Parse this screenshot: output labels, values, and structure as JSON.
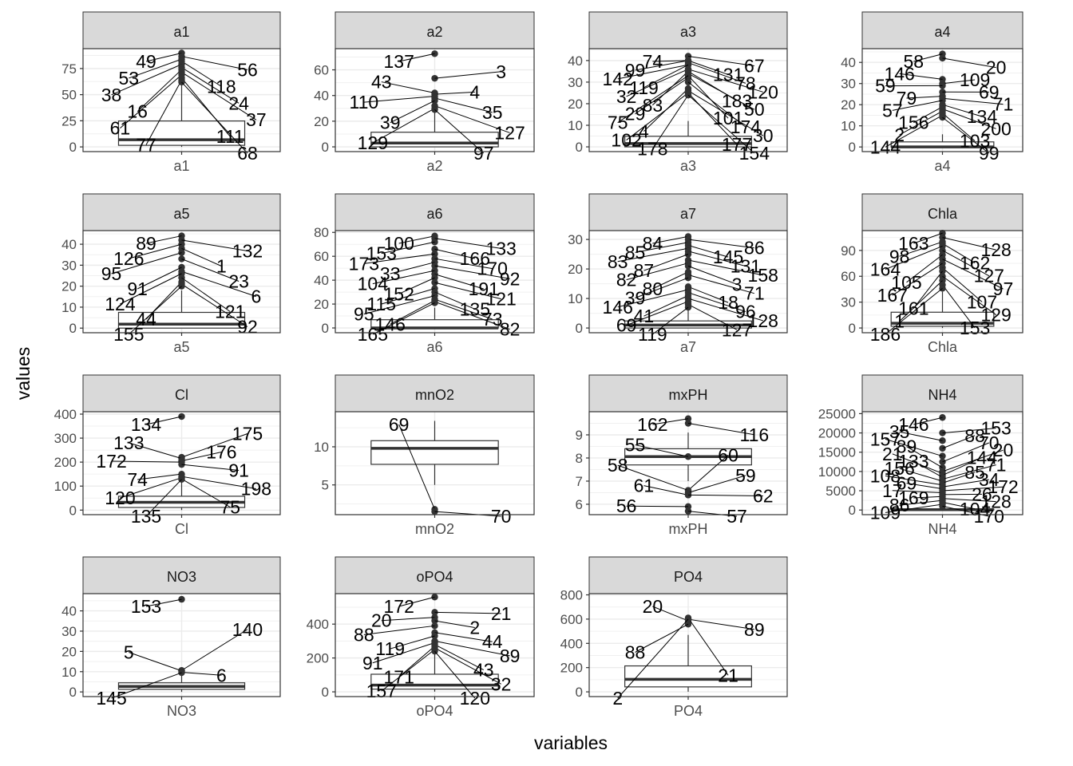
{
  "chart_data": {
    "type": "boxplot",
    "xlabel": "variables",
    "ylabel": "values",
    "grid": true,
    "facet_scales": "free",
    "panels": [
      {
        "name": "a1",
        "ticks": [
          0,
          25,
          50,
          75
        ],
        "ylim": [
          -4.5,
          94
        ],
        "box": {
          "q1": 1.5,
          "median": 6.9,
          "q3": 24.8,
          "whisker_low": 0,
          "whisker_high": 62
        },
        "outliers": [
          {
            "id": "49",
            "y": 89.8
          },
          {
            "id": "56",
            "y": 86.6
          },
          {
            "id": "53",
            "y": 84
          },
          {
            "id": "118",
            "y": 81.9
          },
          {
            "id": "38",
            "y": 79
          },
          {
            "id": "24",
            "y": 76
          },
          {
            "id": "16",
            "y": 74
          },
          {
            "id": "37",
            "y": 71.5
          },
          {
            "id": "61",
            "y": 69
          },
          {
            "id": "111",
            "y": 66
          },
          {
            "id": "77",
            "y": 64
          },
          {
            "id": "68",
            "y": 62
          }
        ]
      },
      {
        "name": "a2",
        "ticks": [
          0,
          20,
          40,
          60
        ],
        "ylim": [
          -3.7,
          76.5
        ],
        "box": {
          "q1": 0,
          "median": 3,
          "q3": 11.4,
          "whisker_low": 0,
          "whisker_high": 28
        },
        "outliers": [
          {
            "id": "137",
            "y": 72.6
          },
          {
            "id": "3",
            "y": 53.4
          },
          {
            "id": "43",
            "y": 42
          },
          {
            "id": "4",
            "y": 41
          },
          {
            "id": "110",
            "y": 39.4
          },
          {
            "id": "35",
            "y": 38
          },
          {
            "id": "39",
            "y": 36
          },
          {
            "id": "127",
            "y": 32
          },
          {
            "id": "129",
            "y": 30
          },
          {
            "id": "97",
            "y": 29
          }
        ]
      },
      {
        "name": "a3",
        "ticks": [
          0,
          10,
          20,
          30,
          40
        ],
        "ylim": [
          -2.2,
          45.5
        ],
        "box": {
          "q1": 0,
          "median": 1.55,
          "q3": 4.9,
          "whisker_low": 0,
          "whisker_high": 12
        }
      },
      {
        "name": "a4",
        "ticks": [
          0,
          10,
          20,
          30,
          40
        ],
        "ylim": [
          -2.2,
          46.5
        ],
        "box": {
          "q1": 0,
          "median": 0,
          "q3": 2.4,
          "whisker_low": 0,
          "whisker_high": 6
        }
      },
      {
        "name": "a5",
        "ticks": [
          0,
          10,
          20,
          30,
          40
        ],
        "ylim": [
          -2.2,
          46.5
        ],
        "box": {
          "q1": 0,
          "median": 1.9,
          "q3": 7.5,
          "whisker_low": 0,
          "whisker_high": 18
        }
      },
      {
        "name": "a6",
        "ticks": [
          0,
          20,
          40,
          60,
          80
        ],
        "ylim": [
          -4,
          81.5
        ],
        "box": {
          "q1": 0,
          "median": 0,
          "q3": 6.9,
          "whisker_low": 0,
          "whisker_high": 17
        }
      },
      {
        "name": "a7",
        "ticks": [
          0,
          10,
          20,
          30
        ],
        "ylim": [
          -1.6,
          33
        ],
        "box": {
          "q1": 0,
          "median": 1,
          "q3": 2.4,
          "whisker_low": 0,
          "whisker_high": 6
        }
      },
      {
        "name": "Chla",
        "ticks": [
          0,
          30,
          60,
          90
        ],
        "ylim": [
          -5.5,
          113
        ],
        "box": {
          "q1": 2,
          "median": 5.5,
          "q3": 18.3,
          "whisker_low": 0,
          "whisker_high": 42
        }
      },
      {
        "name": "Cl",
        "ticks": [
          0,
          100,
          200,
          300,
          400
        ],
        "ylim": [
          -19,
          410
        ],
        "box": {
          "q1": 11,
          "median": 32.7,
          "q3": 57.8,
          "whisker_low": 0,
          "whisker_high": 125
        }
      },
      {
        "name": "mnO2",
        "ticks": [
          5,
          10
        ],
        "ylim": [
          1.1,
          14.6
        ],
        "box": {
          "q1": 7.7,
          "median": 9.8,
          "q3": 10.8,
          "whisker_low": 5,
          "whisker_high": 13.4
        },
        "outliers": [
          {
            "id": "69",
            "y": 1.8
          },
          {
            "id": "70",
            "y": 1.5
          }
        ]
      },
      {
        "name": "mxPH",
        "ticks": [
          6,
          7,
          8,
          9
        ],
        "ylim": [
          5.55,
          10.0
        ],
        "box": {
          "q1": 7.7,
          "median": 8.06,
          "q3": 8.4,
          "whisker_low": 7.0,
          "whisker_high": 9.1
        },
        "outliers": [
          {
            "id": "162",
            "y": 9.7
          },
          {
            "id": "116",
            "y": 9.5
          },
          {
            "id": "55",
            "y": 8.06
          },
          {
            "id": "60",
            "y": 6.6
          },
          {
            "id": "58",
            "y": 6.6
          },
          {
            "id": "59",
            "y": 6.5
          },
          {
            "id": "61",
            "y": 6.4
          },
          {
            "id": "62",
            "y": 6.4
          },
          {
            "id": "56",
            "y": 5.9
          },
          {
            "id": "57",
            "y": 5.7
          }
        ]
      },
      {
        "name": "NH4",
        "ticks": [
          0,
          5000,
          10000,
          15000,
          20000,
          25000
        ],
        "ylim": [
          -1200,
          25500
        ],
        "box": {
          "q1": 38,
          "median": 103,
          "q3": 226,
          "whisker_low": 5,
          "whisker_high": 500
        }
      },
      {
        "name": "NO3",
        "ticks": [
          0,
          10,
          20,
          30,
          40
        ],
        "ylim": [
          -2.3,
          48.5
        ],
        "box": {
          "q1": 1.3,
          "median": 2.7,
          "q3": 4.5,
          "whisker_low": 0,
          "whisker_high": 9
        },
        "outliers": [
          {
            "id": "153",
            "y": 45.7
          },
          {
            "id": "140",
            "y": 10.6
          },
          {
            "id": "5",
            "y": 10.4
          },
          {
            "id": "6",
            "y": 9.7
          },
          {
            "id": "145",
            "y": 9.5
          }
        ]
      },
      {
        "name": "oPO4",
        "ticks": [
          0,
          200,
          400
        ],
        "ylim": [
          -28,
          580
        ],
        "box": {
          "q1": 16,
          "median": 40,
          "q3": 104,
          "whisker_low": 1,
          "whisker_high": 230
        }
      },
      {
        "name": "PO4",
        "ticks": [
          0,
          200,
          400,
          600,
          800
        ],
        "ylim": [
          -39,
          810
        ],
        "box": {
          "q1": 41,
          "median": 103,
          "q3": 214,
          "whisker_low": 1,
          "whisker_high": 470
        },
        "outliers": [
          {
            "id": "20",
            "y": 586
          },
          {
            "id": "89",
            "y": 599
          },
          {
            "id": "88",
            "y": 558
          },
          {
            "id": "21",
            "y": 610
          },
          {
            "id": "2",
            "y": 600
          }
        ]
      }
    ],
    "outlier_label_layouts": {
      "a3": [
        [
          "74",
          74,
          40
        ],
        [
          "67",
          67,
          42
        ],
        [
          "99",
          99,
          40
        ],
        [
          "131",
          131,
          40
        ],
        [
          "142",
          142,
          38
        ],
        [
          "78",
          78,
          39
        ],
        [
          "119",
          119,
          38
        ],
        [
          "120",
          120,
          36
        ],
        [
          "32",
          32,
          36
        ],
        [
          "183",
          183,
          35
        ],
        [
          "83",
          83,
          35
        ],
        [
          "50",
          50,
          34
        ],
        [
          "29",
          29,
          32
        ],
        [
          "101",
          101,
          33
        ],
        [
          "75",
          75,
          33
        ],
        [
          "174",
          174,
          30
        ],
        [
          "4",
          4,
          27
        ],
        [
          "30",
          30,
          26
        ],
        [
          "102",
          102,
          25
        ],
        [
          "177",
          177,
          25
        ],
        [
          "178",
          178,
          24
        ],
        [
          "154",
          154,
          24
        ]
      ],
      "a4": [
        [
          "58",
          58,
          44
        ],
        [
          "20",
          20,
          42
        ],
        [
          "146",
          146,
          32
        ],
        [
          "109",
          109,
          30
        ],
        [
          "59",
          59,
          29
        ],
        [
          "69",
          69,
          26
        ],
        [
          "79",
          79,
          24
        ],
        [
          "71",
          71,
          23
        ],
        [
          "57",
          57,
          22
        ],
        [
          "134",
          134,
          20
        ],
        [
          "156",
          156,
          19
        ],
        [
          "200",
          200,
          18
        ],
        [
          "2",
          2,
          17
        ],
        [
          "103",
          103,
          16
        ],
        [
          "144",
          144,
          15
        ],
        [
          "99",
          99,
          14
        ]
      ],
      "a5": [
        [
          "89",
          89,
          44
        ],
        [
          "132",
          132,
          42
        ],
        [
          "126",
          126,
          40
        ],
        [
          "1",
          1,
          38
        ],
        [
          "95",
          95,
          36
        ],
        [
          "23",
          23,
          33
        ],
        [
          "91",
          91,
          29
        ],
        [
          "6",
          6,
          27
        ],
        [
          "124",
          124,
          26
        ],
        [
          "121",
          121,
          24
        ],
        [
          "44",
          44,
          22
        ],
        [
          "92",
          92,
          21
        ],
        [
          "155",
          155,
          20
        ]
      ],
      "a6": [
        [
          "100",
          100,
          77
        ],
        [
          "133",
          133,
          75
        ],
        [
          "153",
          153,
          72
        ],
        [
          "166",
          166,
          66
        ],
        [
          "173",
          173,
          62
        ],
        [
          "170",
          170,
          58
        ],
        [
          "33",
          33,
          55
        ],
        [
          "92",
          92,
          52
        ],
        [
          "104",
          104,
          48
        ],
        [
          "191",
          191,
          45
        ],
        [
          "152",
          152,
          42
        ],
        [
          "121",
          121,
          38
        ],
        [
          "115",
          115,
          33
        ],
        [
          "135",
          135,
          30
        ],
        [
          "95",
          95,
          27
        ],
        [
          "73",
          73,
          24
        ],
        [
          "146",
          146,
          23
        ],
        [
          "82",
          82,
          22
        ],
        [
          "165",
          165,
          21
        ]
      ],
      "a7": [
        [
          "84",
          84,
          31
        ],
        [
          "86",
          86,
          30
        ],
        [
          "85",
          85,
          29
        ],
        [
          "145",
          145,
          28
        ],
        [
          "83",
          83,
          27
        ],
        [
          "131",
          131,
          26
        ],
        [
          "87",
          87,
          25
        ],
        [
          "158",
          158,
          23
        ],
        [
          "82",
          82,
          22
        ],
        [
          "3",
          3,
          21
        ],
        [
          "80",
          80,
          19
        ],
        [
          "71",
          71,
          18
        ],
        [
          "39",
          39,
          17
        ],
        [
          "18",
          18,
          14
        ],
        [
          "146",
          146,
          13
        ],
        [
          "96",
          96,
          12
        ],
        [
          "41",
          41,
          11
        ],
        [
          "128",
          128,
          10
        ],
        [
          "69",
          69,
          9
        ],
        [
          "127",
          127,
          8
        ],
        [
          "119",
          119,
          7
        ]
      ],
      "Chla": [
        [
          "163",
          163,
          110
        ],
        [
          "128",
          128,
          105
        ],
        [
          "98",
          98,
          100
        ],
        [
          "162",
          162,
          98
        ],
        [
          "164",
          164,
          95
        ],
        [
          "127",
          127,
          90
        ],
        [
          "105",
          105,
          85
        ],
        [
          "97",
          97,
          80
        ],
        [
          "167",
          167,
          75
        ],
        [
          "107",
          107,
          70
        ],
        [
          "161",
          161,
          66
        ],
        [
          "129",
          129,
          60
        ],
        [
          "1",
          1,
          55
        ],
        [
          "153",
          153,
          50
        ],
        [
          "186",
          186,
          46
        ]
      ],
      "Cl": [
        [
          "134",
          134,
          390
        ],
        [
          "175",
          175,
          220
        ],
        [
          "133",
          133,
          215
        ],
        [
          "176",
          176,
          205
        ],
        [
          "172",
          172,
          200
        ],
        [
          "91",
          91,
          190
        ],
        [
          "74",
          74,
          150
        ],
        [
          "198",
          198,
          140
        ],
        [
          "120",
          120,
          135
        ],
        [
          "75",
          75,
          130
        ],
        [
          "135",
          135,
          128
        ]
      ],
      "NH4": [
        [
          "146",
          146,
          24000
        ],
        [
          "153",
          153,
          20000
        ],
        [
          "35",
          35,
          18000
        ],
        [
          "88",
          88,
          16000
        ],
        [
          "157",
          157,
          14000
        ],
        [
          "70",
          70,
          12500
        ],
        [
          "89",
          89,
          11000
        ],
        [
          "20",
          20,
          10000
        ],
        [
          "21",
          21,
          9500
        ],
        [
          "144",
          144,
          9000
        ],
        [
          "133",
          133,
          8500
        ],
        [
          "71",
          71,
          8000
        ],
        [
          "156",
          156,
          7500
        ],
        [
          "85",
          85,
          7000
        ],
        [
          "108",
          108,
          6500
        ],
        [
          "34",
          34,
          6000
        ],
        [
          "69",
          69,
          5500
        ],
        [
          "172",
          172,
          5000
        ],
        [
          "17",
          17,
          4500
        ],
        [
          "26",
          26,
          4000
        ],
        [
          "169",
          169,
          3500
        ],
        [
          "128",
          128,
          3000
        ],
        [
          "86",
          86,
          2500
        ],
        [
          "104",
          104,
          2000
        ],
        [
          "109",
          109,
          1500
        ],
        [
          "170",
          170,
          1000
        ]
      ],
      "oPO4": [
        [
          "172",
          172,
          560
        ],
        [
          "21",
          21,
          470
        ],
        [
          "20",
          20,
          440
        ],
        [
          "2",
          2,
          420
        ],
        [
          "88",
          88,
          390
        ],
        [
          "44",
          44,
          350
        ],
        [
          "119",
          119,
          330
        ],
        [
          "89",
          89,
          300
        ],
        [
          "91",
          91,
          290
        ],
        [
          "43",
          43,
          280
        ],
        [
          "171",
          171,
          270
        ],
        [
          "32",
          32,
          260
        ],
        [
          "157",
          157,
          250
        ],
        [
          "120",
          120,
          240
        ]
      ]
    }
  }
}
